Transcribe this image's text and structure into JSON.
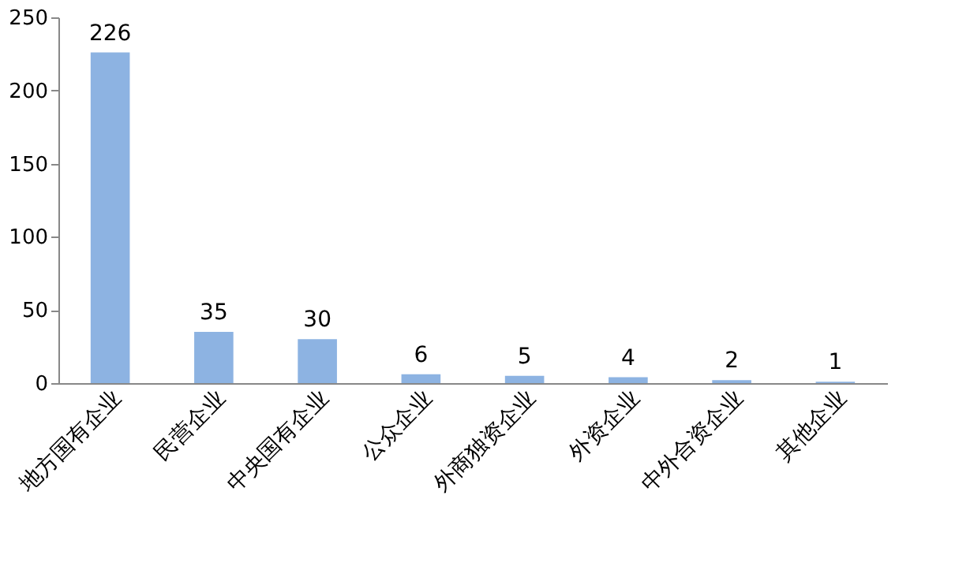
{
  "chart_data": {
    "type": "bar",
    "categories": [
      "地方国有企业",
      "民营企业",
      "中央国有企业",
      "公众企业",
      "外商独资企业",
      "外资企业",
      "中外合资企业",
      "其他企业"
    ],
    "values": [
      226,
      35,
      30,
      6,
      5,
      4,
      2,
      1
    ],
    "color": "#8db3e2",
    "ylim": [
      0,
      250
    ],
    "yticks": [
      0,
      50,
      100,
      150,
      200,
      250
    ],
    "grid": false,
    "data_labels": true
  }
}
